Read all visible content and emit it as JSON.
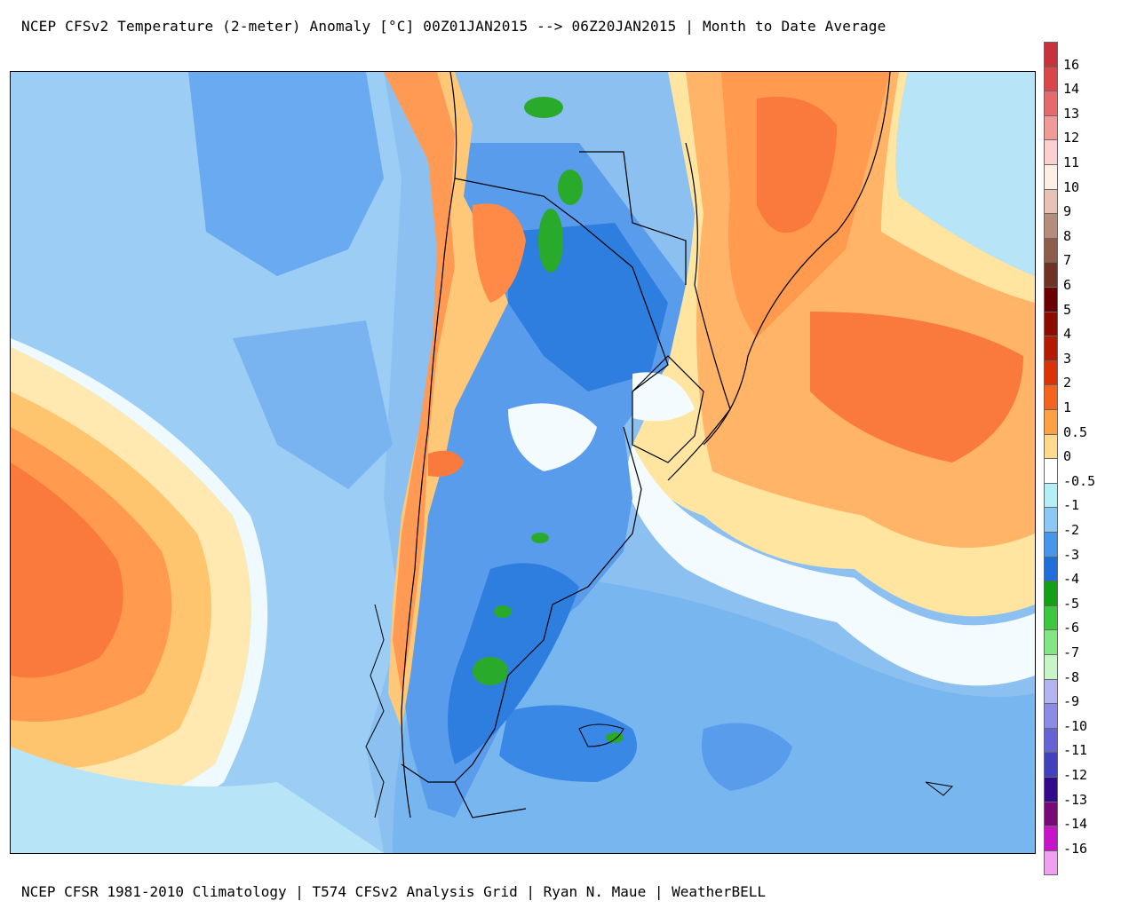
{
  "title": "NCEP CFSv2 Temperature (2-meter) Anomaly  [°C] 00Z01JAN2015 --> 06Z20JAN2015 | Month to Date Average",
  "footer": "NCEP CFSR 1981-2010 Climatology | T574 CFSv2 Analysis Grid | Ryan N. Maue | WeatherBELL",
  "colorbar": {
    "labels": [
      "16",
      "14",
      "13",
      "12",
      "11",
      "10",
      "9",
      "8",
      "7",
      "6",
      "5",
      "4",
      "3",
      "2",
      "1",
      "0.5",
      "0",
      "-0.5",
      "-1",
      "-2",
      "-3",
      "-4",
      "-5",
      "-6",
      "-7",
      "-8",
      "-9",
      "-10",
      "-11",
      "-12",
      "-13",
      "-14",
      "-16"
    ],
    "colors": [
      "#c8323c",
      "#d9474b",
      "#e6696b",
      "#f2999a",
      "#fbd0cf",
      "#fbefe6",
      "#e6c3b5",
      "#b68c7c",
      "#8e5e4d",
      "#6e3325",
      "#6b0000",
      "#8c0c00",
      "#b41a00",
      "#dc3208",
      "#f5641e",
      "#ffa046",
      "#ffd98c",
      "#ffffff",
      "#b4eef6",
      "#8cc8f5",
      "#4696eb",
      "#1e6edc",
      "#14a014",
      "#3cc83c",
      "#82e682",
      "#c8f5c8",
      "#b4b4f0",
      "#8c8ce6",
      "#6464d7",
      "#4141be",
      "#320a8c",
      "#780a78",
      "#c814c8",
      "#f0a0f0"
    ]
  }
}
